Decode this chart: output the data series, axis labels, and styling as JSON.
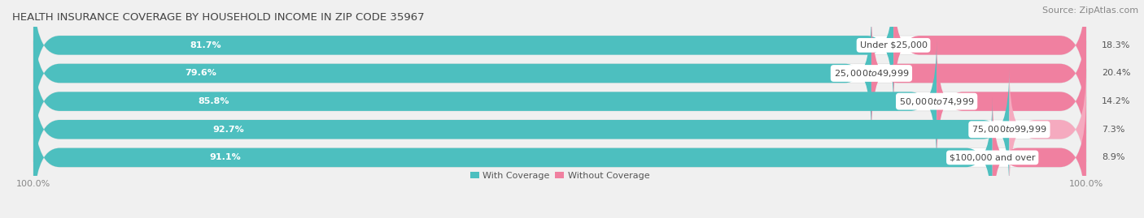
{
  "title": "HEALTH INSURANCE COVERAGE BY HOUSEHOLD INCOME IN ZIP CODE 35967",
  "source": "Source: ZipAtlas.com",
  "categories": [
    "Under $25,000",
    "$25,000 to $49,999",
    "$50,000 to $74,999",
    "$75,000 to $99,999",
    "$100,000 and over"
  ],
  "with_coverage": [
    81.7,
    79.6,
    85.8,
    92.7,
    91.1
  ],
  "without_coverage": [
    18.3,
    20.4,
    14.2,
    7.3,
    8.9
  ],
  "color_with": "#4DBFBF",
  "color_without": "#F080A0",
  "color_without_light": "#F5AABF",
  "bg_color": "#f0f0f0",
  "bar_bg_color": "#ffffff",
  "bar_height": 0.68,
  "title_fontsize": 9.5,
  "label_fontsize": 8.0,
  "tick_fontsize": 8,
  "source_fontsize": 8,
  "wc_pct_label_color": "#ffffff",
  "woc_pct_label_color": "#555555",
  "cat_label_color": "#444444"
}
